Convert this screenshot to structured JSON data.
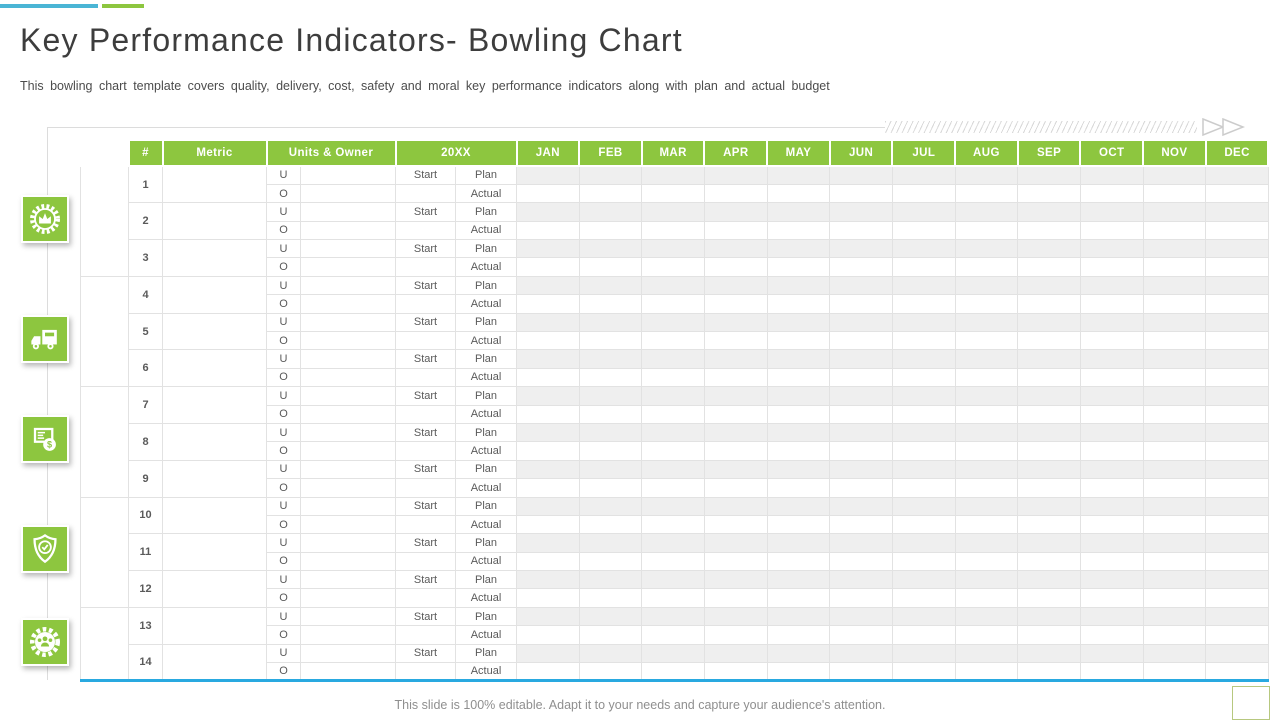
{
  "palette": {
    "green": "#8dc63f",
    "blue": "#29a9e0",
    "lightblue": "#cde9f6",
    "cellgray": "#efefef",
    "barblue": "#4ab5d5"
  },
  "header": {
    "title": "Key Performance Indicators- Bowling Chart",
    "subtitle": "This bowling chart template covers quality, delivery, cost, safety and moral key performance indicators along with plan and actual budget"
  },
  "table": {
    "columns": {
      "num": "#",
      "metric": "Metric",
      "units_owner": "Units & Owner",
      "year": "20XX"
    },
    "months": [
      "JAN",
      "FEB",
      "MAR",
      "APR",
      "MAY",
      "JUN",
      "JUL",
      "AUG",
      "SEP",
      "OCT",
      "NOV",
      "DEC"
    ],
    "row_labels": {
      "u": "U",
      "o": "O",
      "start": "Start",
      "plan": "Plan",
      "actual": "Actual"
    },
    "sections": [
      {
        "label": "Quality",
        "icon": "quality-badge-icon",
        "rows": [
          "1",
          "2",
          "3"
        ]
      },
      {
        "label": "Delivery",
        "icon": "delivery-truck-icon",
        "rows": [
          "4",
          "5",
          "6"
        ]
      },
      {
        "label": "Cost",
        "icon": "cost-money-icon",
        "rows": [
          "7",
          "8",
          "9"
        ]
      },
      {
        "label": "Safety",
        "icon": "safety-shield-icon",
        "rows": [
          "10",
          "11",
          "12"
        ]
      },
      {
        "label": "Morale",
        "icon": "morale-team-icon",
        "rows": [
          "13",
          "14"
        ]
      }
    ]
  },
  "footer": {
    "note": "This slide is 100% editable. Adapt it to your needs and capture your audience's attention."
  }
}
